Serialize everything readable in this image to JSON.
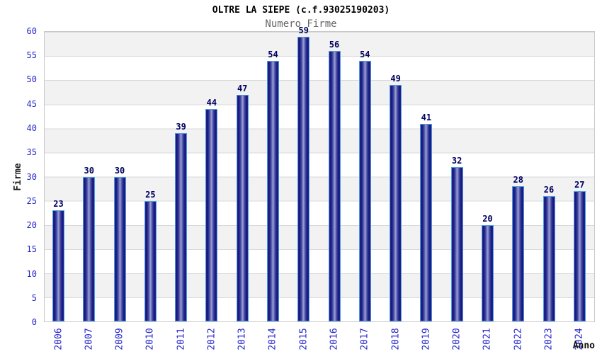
{
  "chart_data": {
    "type": "bar",
    "title": "OLTRE LA SIEPE (c.f.93025190203)",
    "subtitle": "Numero Firme",
    "xlabel": "Anno",
    "ylabel": "Firme",
    "categories": [
      "2006",
      "2007",
      "2009",
      "2010",
      "2011",
      "2012",
      "2013",
      "2014",
      "2015",
      "2016",
      "2017",
      "2018",
      "2019",
      "2020",
      "2021",
      "2022",
      "2023",
      "2024"
    ],
    "values": [
      23,
      30,
      30,
      25,
      39,
      44,
      47,
      54,
      59,
      56,
      54,
      49,
      41,
      32,
      20,
      28,
      26,
      27
    ],
    "ylim": [
      0,
      60
    ],
    "ytick_step": 5,
    "legend": null,
    "grid": "horizontal-bands-every-5",
    "colors": {
      "bar_dark": "#15157c",
      "bar_mid": "#3d43a0",
      "bar_highlight": "#9ba1d2",
      "bar_border": "#4f9be0",
      "tick_label": "#2424cc",
      "value_label": "#000060",
      "band_gray": "#f2f2f2",
      "band_line": "#d9d9d9",
      "title_color": "#000000",
      "subtitle_color": "#666666"
    }
  }
}
